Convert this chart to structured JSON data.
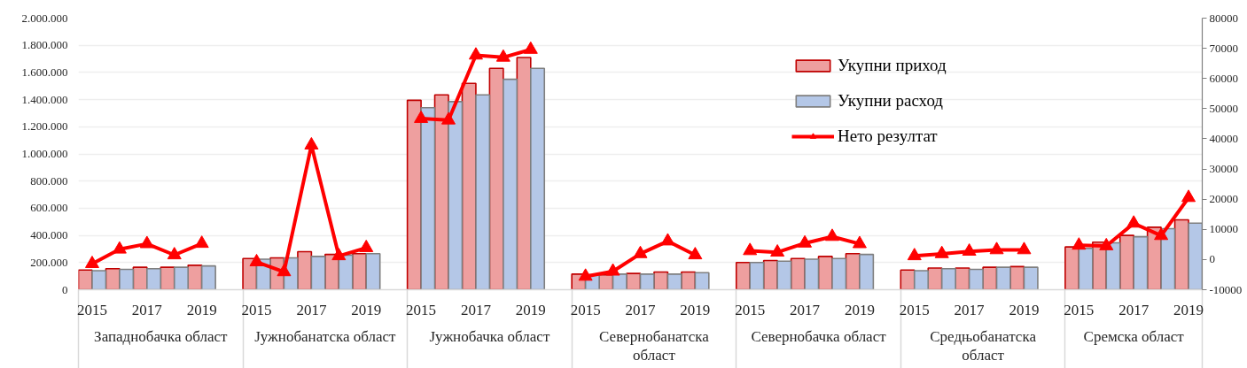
{
  "chart_data": {
    "type": "bar",
    "categories": [
      "2015",
      null,
      "2017",
      null,
      "2019",
      null,
      "2015",
      null,
      "2017",
      null,
      "2019",
      null,
      "2015",
      null,
      "2017",
      null,
      "2019",
      null,
      "2015",
      null,
      "2017",
      null,
      "2019",
      null,
      "2015",
      null,
      "2017",
      null,
      "2019",
      null,
      "2015",
      null,
      "2017",
      null,
      "2019",
      null,
      "2015",
      null,
      "2017",
      null,
      "2019"
    ],
    "series": [
      {
        "name": "Укупни приход",
        "color": "#ee9f9f",
        "values": [
          145000,
          155000,
          165000,
          165000,
          180000,
          null,
          230000,
          235000,
          280000,
          260000,
          265000,
          null,
          1395000,
          1435000,
          1520000,
          1630000,
          1710000,
          null,
          115000,
          110000,
          120000,
          130000,
          130000,
          null,
          200000,
          215000,
          230000,
          245000,
          265000,
          null,
          145000,
          160000,
          160000,
          165000,
          170000,
          null,
          315000,
          350000,
          400000,
          460000,
          515000
        ]
      },
      {
        "name": "Укупни расход",
        "color": "#b4c7e7",
        "values": [
          140000,
          150000,
          155000,
          165000,
          175000,
          null,
          225000,
          235000,
          245000,
          255000,
          265000,
          null,
          1340000,
          1385000,
          1435000,
          1550000,
          1630000,
          null,
          110000,
          115000,
          115000,
          115000,
          125000,
          null,
          200000,
          210000,
          225000,
          230000,
          260000,
          null,
          140000,
          155000,
          150000,
          165000,
          165000,
          null,
          305000,
          345000,
          390000,
          450000,
          490000
        ]
      },
      {
        "name": "Нето резултат",
        "type": "line",
        "axis": "y2",
        "color": "#ff0000",
        "values": [
          -1400,
          3400,
          5200,
          1500,
          5300,
          null,
          -800,
          -4100,
          37900,
          1200,
          3900,
          null,
          46700,
          46200,
          67700,
          67000,
          69600,
          null,
          -5600,
          -3900,
          1900,
          6100,
          1500,
          null,
          2900,
          2400,
          5400,
          7600,
          5200,
          null,
          1200,
          1900,
          2700,
          3200,
          3200,
          null,
          4700,
          4500,
          12000,
          7900,
          20500
        ]
      }
    ],
    "ylim": [
      0,
      2000000
    ],
    "yticks": [
      0,
      {
        "value": 200000,
        "label": "200.000"
      },
      {
        "value": 400000,
        "label": "400.000"
      },
      {
        "value": 600000,
        "label": "600.000"
      },
      {
        "value": 800000,
        "label": "800.000"
      },
      {
        "value": 1000000,
        "label": "1.000.000"
      },
      {
        "value": 1200000,
        "label": "1.200.000"
      },
      {
        "value": 1400000,
        "label": "1.400.000"
      },
      {
        "value": 1600000,
        "label": "1.600.000"
      },
      {
        "value": 1800000,
        "label": "1.800.000"
      },
      {
        "value": 2000000,
        "label": "2.000.000"
      }
    ],
    "y2lim": [
      -10000,
      80000
    ],
    "y2ticks": [
      -10000,
      0,
      10000,
      20000,
      30000,
      40000,
      50000,
      60000,
      70000,
      80000
    ],
    "grid": "y",
    "legend": "top right",
    "marker": "triangle",
    "annotations": [
      "Западнобачка област",
      "Јужнобанатска област",
      "Јужнобачка област",
      "Севернобанатска област",
      "Севернобачка област",
      "Средњобанатска област",
      "Сремска област"
    ]
  }
}
